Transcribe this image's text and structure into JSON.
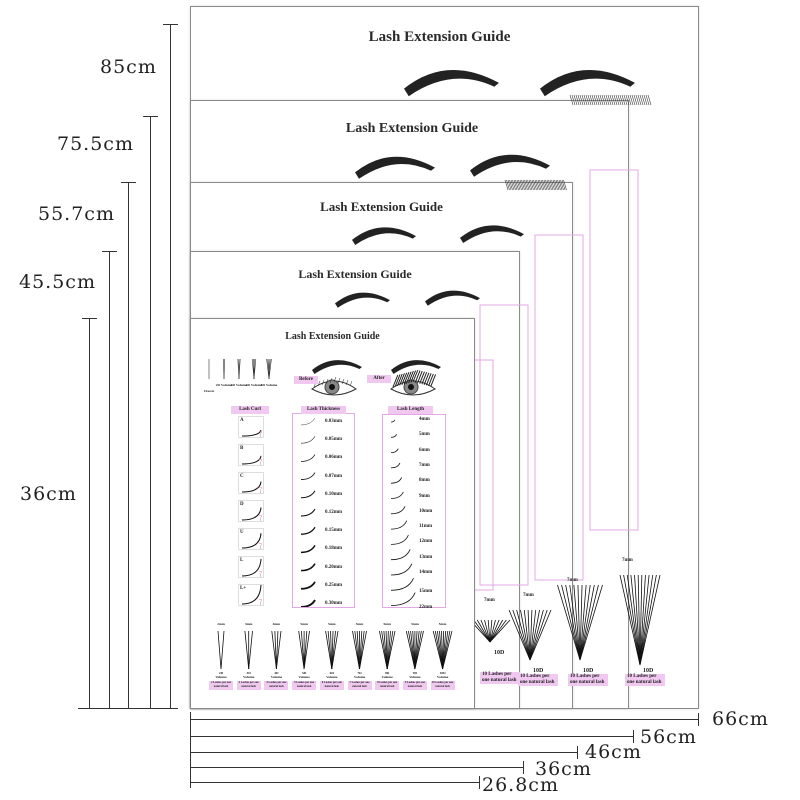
{
  "poster_title": "Lash Extension Guide",
  "sizes": {
    "heights": [
      "85cm",
      "75.5cm",
      "55.7cm",
      "45.5cm",
      "36cm"
    ],
    "widths": [
      "66cm",
      "56cm",
      "46cm",
      "36cm",
      "26.8cm"
    ]
  },
  "front": {
    "lash_types": [
      "Classic",
      "2D Volume",
      "3D Volume",
      "4D Volume",
      "5D Volume"
    ],
    "before_label": "Before",
    "after_label": "After",
    "curl_header": "Lash Curl",
    "curls": [
      "A",
      "B",
      "C",
      "D",
      "U",
      "L",
      "L+"
    ],
    "thickness_header": "Lash Thickness",
    "thickness": [
      "0.03mm",
      "0.05mm",
      "0.06mm",
      "0.07mm",
      "0.10mm",
      "0.12mm",
      "0.15mm",
      "0.18mm",
      "0.20mm",
      "0.25mm",
      "0.30mm"
    ],
    "length_header": "Lash Length",
    "lengths": [
      "4mm",
      "5mm",
      "6mm",
      "7mm",
      "8mm",
      "9mm",
      "10mm",
      "11mm",
      "12mm",
      "13mm",
      "14mm",
      "15mm",
      "22mm"
    ],
    "fans": [
      {
        "length": "2mm",
        "volume": "2D",
        "label": "Volume",
        "note": "2 Lashes per one natural lash"
      },
      {
        "length": "3mm",
        "volume": "3D",
        "label": "Volume",
        "note": "3 Lashes per one natural lash"
      },
      {
        "length": "4mm",
        "volume": "4D",
        "label": "Volume",
        "note": "4 Lashes per one natural lash"
      },
      {
        "length": "5mm",
        "volume": "5D",
        "label": "Volume",
        "note": "5 Lashes per one natural lash"
      },
      {
        "length": "5mm",
        "volume": "6D",
        "label": "Volume",
        "note": "6 Lashes per one natural lash"
      },
      {
        "length": "5mm",
        "volume": "7D",
        "label": "Volume",
        "note": "7 Lashes per one natural lash"
      },
      {
        "length": "5mm",
        "volume": "8D",
        "label": "Volume",
        "note": "8 Lashes per one natural lash"
      },
      {
        "length": "5mm",
        "volume": "9D",
        "label": "Volume",
        "note": "9 Lashes per one natural lash"
      },
      {
        "length": "5mm",
        "volume": "10D",
        "label": "Volume",
        "note": "10 Lashes per one natural lash"
      }
    ]
  },
  "back_partial": {
    "fan_length": "7mm",
    "volume": "10D",
    "volume_label": "Volume",
    "note": "10 Lashes per one natural lash"
  },
  "colors": {
    "pink": "#f0c8f0",
    "pink_border": "#e2a9e6",
    "ink": "#222222"
  }
}
